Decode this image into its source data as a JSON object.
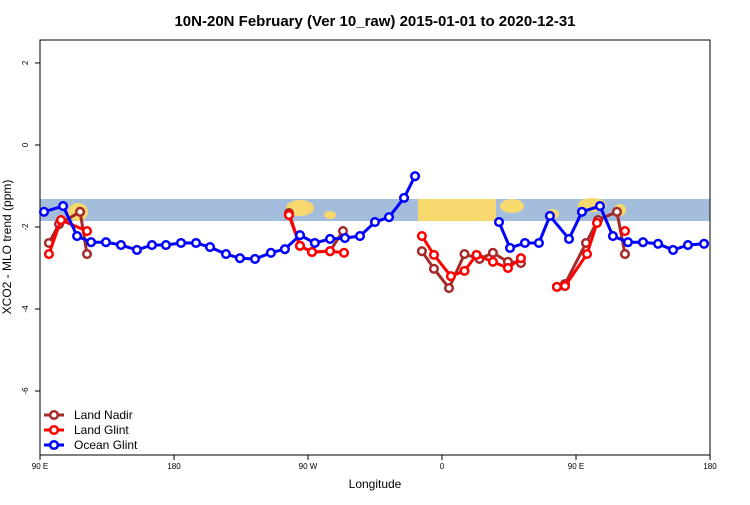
{
  "chart_data": {
    "type": "line",
    "title": "10N-20N February (Ver 10_raw)   2015-01-01 to 2020-12-31",
    "x_label": "Longitude",
    "y_label": "XCO2 - MLO trend (ppm)",
    "xlim": [
      90,
      540
    ],
    "xticks": [
      {
        "value": 90,
        "label": "90 E"
      },
      180,
      {
        "value": 270,
        "label": "90 W"
      },
      {
        "value": 360,
        "label": "0"
      },
      {
        "value": 450,
        "label": "90 E"
      },
      {
        "value": 540,
        "label": "180"
      }
    ],
    "ylim": [
      -7.56,
      2.56
    ],
    "yticks": [
      2,
      0,
      -2,
      -4,
      -6
    ],
    "legend": "lower left",
    "series": [
      {
        "name": "Land Nadir",
        "color": "#a52a2a",
        "x": [
          96.0,
          102.8,
          116.9,
          121.6,
          null,
          257.2,
          264.6,
          272.7,
          284.8,
          293.5,
          null,
          346.5,
          354.6,
          364.7,
          375.1,
          385.2,
          394.2,
          404.3,
          413.0,
          null,
          437.2,
          442.6,
          456.7,
          464.8,
          477.5,
          482.9
        ],
        "values": [
          -2.39,
          -1.93,
          -1.63,
          -2.66,
          null,
          -1.66,
          -2.46,
          -2.61,
          -2.59,
          -2.1,
          null,
          -2.59,
          -3.02,
          -3.49,
          -2.66,
          -2.78,
          -2.63,
          -2.85,
          -2.88,
          null,
          -3.46,
          -3.39,
          -2.39,
          -1.83,
          -1.63,
          -2.66
        ]
      },
      {
        "name": "Land Glint",
        "color": "#ff0000",
        "x": [
          96.0,
          104.1,
          121.6,
          null,
          257.2,
          264.6,
          272.7,
          284.8,
          294.2,
          null,
          346.5,
          354.6,
          366.0,
          375.1,
          383.2,
          394.2,
          404.3,
          413.0,
          null,
          437.2,
          442.6,
          457.4,
          464.1,
          null,
          482.9
        ],
        "values": [
          -2.66,
          -1.83,
          -2.1,
          null,
          -1.71,
          -2.46,
          -2.61,
          -2.59,
          -2.63,
          null,
          -2.22,
          -2.68,
          -3.2,
          -3.07,
          -2.68,
          -2.85,
          -3.0,
          -2.76,
          null,
          -3.46,
          -3.44,
          -2.66,
          -1.9,
          null,
          -2.1
        ]
      },
      {
        "name": "Ocean Glint",
        "color": "#0000ff",
        "x": [
          92.7,
          105.5,
          114.9,
          124.3,
          134.3,
          144.4,
          155.1,
          165.2,
          174.6,
          184.7,
          194.8,
          204.2,
          214.9,
          224.3,
          234.4,
          245.1,
          254.5,
          264.6,
          274.6,
          284.8,
          294.8,
          304.9,
          315.0,
          324.4,
          334.5,
          341.9,
          null,
          398.3,
          405.7,
          415.7,
          425.1,
          432.5,
          445.3,
          454.0,
          466.1,
          474.8,
          484.9,
          495.0,
          505.1,
          515.2,
          525.2,
          536.0
        ],
        "values": [
          -1.63,
          -1.49,
          -2.22,
          -2.37,
          -2.37,
          -2.44,
          -2.56,
          -2.44,
          -2.44,
          -2.39,
          -2.39,
          -2.49,
          -2.66,
          -2.76,
          -2.78,
          -2.63,
          -2.54,
          -2.2,
          -2.39,
          -2.29,
          -2.27,
          -2.22,
          -1.88,
          -1.76,
          -1.29,
          -0.76,
          null,
          -1.88,
          -2.51,
          -2.39,
          -2.39,
          -1.73,
          -2.29,
          -1.63,
          -1.49,
          -2.22,
          -2.37,
          -2.37,
          -2.41,
          -2.56,
          -2.44,
          -2.41
        ]
      }
    ]
  }
}
